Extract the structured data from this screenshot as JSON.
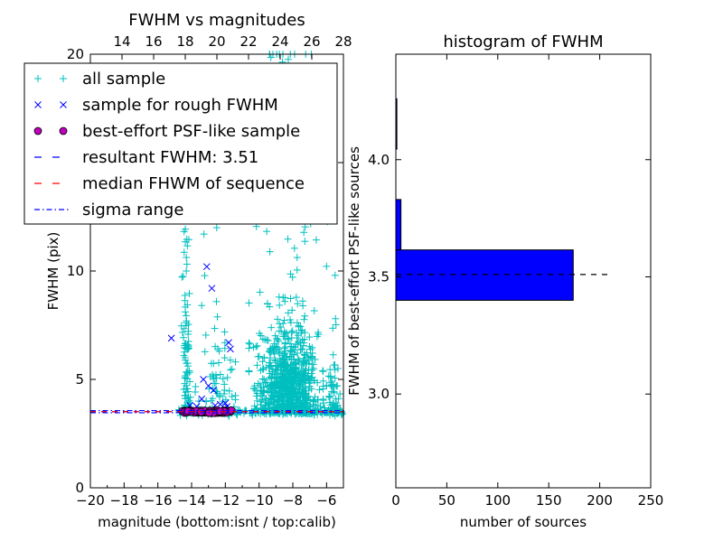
{
  "chart_data": [
    {
      "type": "scatter",
      "title": "FWHM vs magnitudes",
      "xlabel": "magnitude (bottom:isnt / top:calib)",
      "ylabel": "FWHM (pix)",
      "xlim": [
        -20,
        -5
      ],
      "ylim": [
        0,
        20
      ],
      "xticks": [
        "−20",
        "−18",
        "−16",
        "−14",
        "−12",
        "−10",
        "−8",
        "−6"
      ],
      "xtick_values": [
        -20,
        -18,
        -16,
        -14,
        -12,
        -10,
        -8,
        -6
      ],
      "yticks": [
        "0",
        "5",
        "10",
        "15",
        "20"
      ],
      "ytick_values": [
        0,
        5,
        10,
        15,
        20
      ],
      "top_xlim": [
        12,
        28
      ],
      "top_xticks": [
        "14",
        "16",
        "18",
        "20",
        "22",
        "24",
        "26",
        "28"
      ],
      "top_xtick_values": [
        14,
        16,
        18,
        20,
        22,
        24,
        26,
        28
      ],
      "legend_position": "upper-left",
      "legend": [
        {
          "label": "all sample",
          "marker": "+",
          "color": "#00bfbf"
        },
        {
          "label": "sample for rough FWHM",
          "marker": "x",
          "color": "#0000ff"
        },
        {
          "label": "best-effort PSF-like sample",
          "marker": "o",
          "color": "#bf00bf"
        },
        {
          "label": "resultant FWHM: 3.51",
          "line": "dashed",
          "color": "#0000ff"
        },
        {
          "label": "median FHWM of sequence",
          "line": "dashed",
          "color": "#ff0000"
        },
        {
          "label": "sigma range",
          "line": "dashdot",
          "color": "#0000ff"
        }
      ],
      "series": [
        {
          "name": "all sample",
          "clusters": [
            {
              "x_range": [
                -10.6,
                -6.2
              ],
              "x_center": -8.3,
              "y_range": [
                3.4,
                20
              ],
              "y_center": 5.2,
              "count": 900
            },
            {
              "x_range": [
                -14.6,
                -14.0
              ],
              "x_center": -14.3,
              "y_range": [
                3.4,
                13.5
              ],
              "y_center": 6.5,
              "count": 90
            },
            {
              "x_range": [
                -13.8,
                -11.4
              ],
              "x_center": -12.5,
              "y_range": [
                3.4,
                12
              ],
              "y_center": 5.5,
              "count": 60
            },
            {
              "x_range": [
                -6.0,
                -5.1
              ],
              "x_center": -5.6,
              "y_range": [
                3.4,
                16
              ],
              "y_center": 4.5,
              "count": 60
            }
          ],
          "band": {
            "x_range": [
              -14.8,
              -5.0
            ],
            "y": 3.51,
            "count": 220
          }
        },
        {
          "name": "sample for rough FWHM",
          "points": [
            [
              -15.2,
              6.9
            ],
            [
              -13.1,
              10.2
            ],
            [
              -12.8,
              9.2
            ],
            [
              -11.8,
              6.7
            ],
            [
              -11.7,
              6.4
            ],
            [
              -13.3,
              5.0
            ],
            [
              -13.0,
              4.7
            ],
            [
              -12.7,
              4.5
            ],
            [
              -13.4,
              4.1
            ],
            [
              -12.3,
              3.85
            ],
            [
              -11.9,
              3.75
            ],
            [
              -12.0,
              3.9
            ],
            [
              -14.1,
              3.8
            ],
            [
              -13.7,
              3.75
            ],
            [
              -12.6,
              3.8
            ]
          ]
        },
        {
          "name": "best-effort PSF-like sample",
          "x_range": [
            -14.6,
            -11.6
          ],
          "y": 3.51,
          "count": 70
        }
      ],
      "hlines": [
        {
          "name": "resultant FWHM: 3.51",
          "y": 3.51,
          "style": "dashed",
          "color": "#0000ff"
        },
        {
          "name": "median FHWM of sequence",
          "y": 3.51,
          "style": "dashed",
          "color": "#ff0000"
        },
        {
          "name": "sigma range",
          "y": 3.46,
          "style": "dashdot",
          "color": "#0000ff"
        },
        {
          "name": "sigma range",
          "y": 3.56,
          "style": "dashdot",
          "color": "#0000ff"
        }
      ]
    },
    {
      "type": "bar",
      "orientation": "horizontal",
      "title": "histogram of FWHM",
      "xlabel": "number of sources",
      "ylabel": "FWHM of best-effort PSF-like sources",
      "xlim": [
        0,
        250
      ],
      "ylim": [
        2.6,
        4.45
      ],
      "xticks": [
        "0",
        "50",
        "100",
        "150",
        "200",
        "250"
      ],
      "xtick_values": [
        0,
        50,
        100,
        150,
        200,
        250
      ],
      "yticks": [
        "3.0",
        "3.5",
        "4.0"
      ],
      "ytick_values": [
        3.0,
        3.5,
        4.0
      ],
      "bar_color": "#0000ff",
      "bins": [
        {
          "y_low": 3.4,
          "y_high": 3.615,
          "count": 174
        },
        {
          "y_low": 3.615,
          "y_high": 3.83,
          "count": 5
        },
        {
          "y_low": 3.83,
          "y_high": 4.045,
          "count": 0
        },
        {
          "y_low": 4.045,
          "y_high": 4.26,
          "count": 1
        }
      ],
      "hline": {
        "y": 3.51,
        "x_range": [
          0,
          210
        ],
        "style": "dashed",
        "color": "#000000"
      }
    }
  ]
}
